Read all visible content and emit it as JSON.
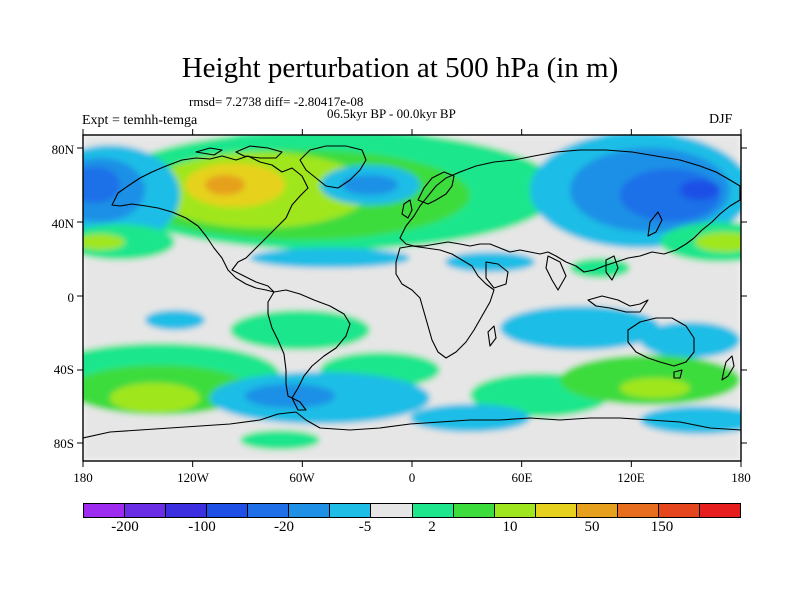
{
  "figure": {
    "title": "Height perturbation at 500 hPa (in m)",
    "stats": "rmsd= 7.2738 diff= -2.80417e-08",
    "period": "06.5kyr BP - 00.0kyr BP",
    "experiment": "Expt = temhh-temga",
    "season": "DJF"
  },
  "map": {
    "lat_ticks": [
      "80N",
      "40N",
      "0",
      "40S",
      "80S"
    ],
    "lon_ticks": [
      "180",
      "120W",
      "60W",
      "0",
      "60E",
      "120E",
      "180"
    ]
  },
  "colorbar": {
    "colors": [
      "#9d2cf0",
      "#6a2fe5",
      "#3b2fe0",
      "#1e50e6",
      "#1f6fe8",
      "#1e90e6",
      "#1ebde6",
      "#e6e6e6",
      "#1ee68c",
      "#3cdc3c",
      "#a0e61e",
      "#e6d21e",
      "#e6a01e",
      "#e66e1e",
      "#e6461e",
      "#e61e1e"
    ],
    "labels": [
      "-200",
      "-100",
      "-20",
      "-5",
      "2",
      "10",
      "50",
      "150"
    ]
  },
  "palette": {
    "neutral": "#e6e6e6",
    "light_blue": "#1ebde6",
    "blue": "#1e90e6",
    "dark_blue": "#1f6fe8",
    "deep_blue": "#1e50e6",
    "teal_green": "#1ee68c",
    "green": "#3cdc3c",
    "yellow_green": "#a0e61e",
    "yellow": "#e6d21e",
    "orange": "#e6a01e"
  }
}
